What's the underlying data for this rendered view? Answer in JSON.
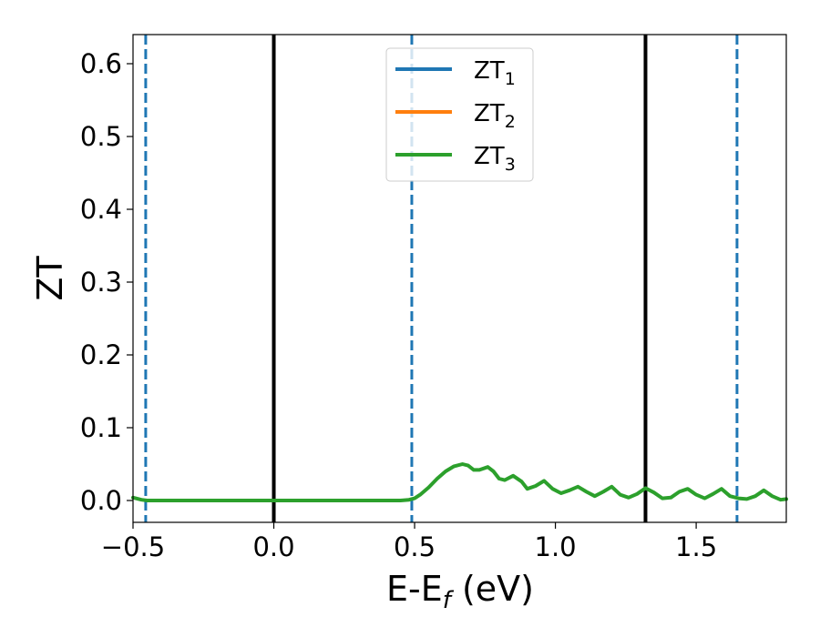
{
  "chart_data": {
    "type": "line",
    "title": "",
    "xlabel": "E-E",
    "xlabel_sub": "f",
    "xlabel_unit": " (eV)",
    "ylabel": "ZT",
    "xlim": [
      -0.5,
      1.82
    ],
    "ylim": [
      -0.03,
      0.64
    ],
    "xticks": [
      -0.5,
      0.0,
      0.5,
      1.0,
      1.5
    ],
    "xtick_labels": [
      "−0.5",
      "0.0",
      "0.5",
      "1.0",
      "1.5"
    ],
    "yticks": [
      0.0,
      0.1,
      0.2,
      0.3,
      0.4,
      0.5,
      0.6
    ],
    "ytick_labels": [
      "0.0",
      "0.1",
      "0.2",
      "0.3",
      "0.4",
      "0.5",
      "0.6"
    ],
    "grid": false,
    "legend_position": "top-center",
    "vertical_lines": [
      {
        "x": -0.455,
        "style": "dashed",
        "color": "#1f77b4"
      },
      {
        "x": 0.0,
        "style": "solid",
        "color": "#000000"
      },
      {
        "x": 0.49,
        "style": "dashed",
        "color": "#1f77b4"
      },
      {
        "x": 1.32,
        "style": "solid",
        "color": "#000000"
      },
      {
        "x": 1.645,
        "style": "dashed",
        "color": "#1f77b4"
      }
    ],
    "series": [
      {
        "name": "ZT",
        "subscript": "1",
        "color": "#1f77b4",
        "x": [],
        "y": []
      },
      {
        "name": "ZT",
        "subscript": "2",
        "color": "#ff7f0e",
        "x": [],
        "y": []
      },
      {
        "name": "ZT",
        "subscript": "3",
        "color": "#2ca02c",
        "x": [
          -0.5,
          -0.47,
          -0.45,
          -0.4,
          -0.3,
          -0.2,
          -0.1,
          0.0,
          0.1,
          0.2,
          0.3,
          0.4,
          0.45,
          0.48,
          0.5,
          0.52,
          0.55,
          0.58,
          0.61,
          0.64,
          0.67,
          0.69,
          0.71,
          0.73,
          0.76,
          0.78,
          0.8,
          0.82,
          0.85,
          0.88,
          0.9,
          0.93,
          0.96,
          0.99,
          1.02,
          1.05,
          1.08,
          1.11,
          1.14,
          1.17,
          1.2,
          1.23,
          1.26,
          1.29,
          1.32,
          1.35,
          1.38,
          1.41,
          1.44,
          1.47,
          1.5,
          1.53,
          1.56,
          1.59,
          1.62,
          1.65,
          1.68,
          1.71,
          1.74,
          1.77,
          1.8,
          1.82
        ],
        "y": [
          0.004,
          0.001,
          0.0,
          0.0,
          0.0,
          0.0,
          0.0,
          0.0,
          0.0,
          0.0,
          0.0,
          0.0,
          0.0,
          0.001,
          0.003,
          0.008,
          0.018,
          0.03,
          0.04,
          0.047,
          0.05,
          0.048,
          0.042,
          0.042,
          0.046,
          0.04,
          0.03,
          0.028,
          0.034,
          0.026,
          0.016,
          0.02,
          0.027,
          0.016,
          0.01,
          0.014,
          0.019,
          0.012,
          0.006,
          0.012,
          0.019,
          0.008,
          0.004,
          0.009,
          0.017,
          0.011,
          0.003,
          0.004,
          0.012,
          0.016,
          0.008,
          0.003,
          0.009,
          0.016,
          0.006,
          0.003,
          0.002,
          0.006,
          0.014,
          0.006,
          0.001,
          0.002
        ]
      }
    ]
  }
}
